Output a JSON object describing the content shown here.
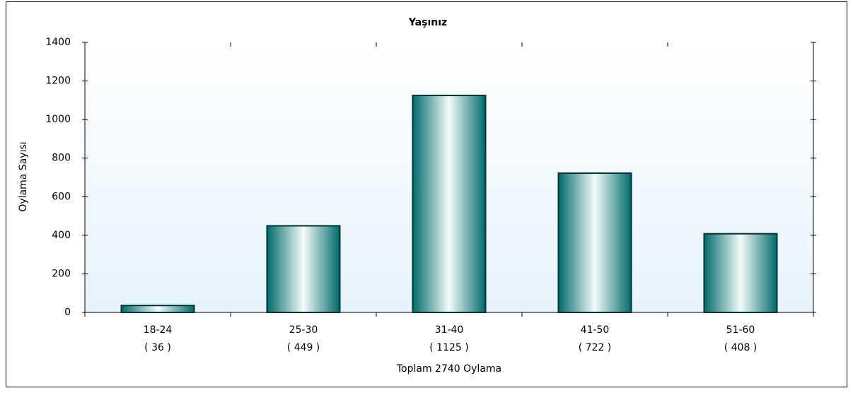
{
  "chart_data": {
    "type": "bar",
    "title": "Yaşınız",
    "categories": [
      "18-24",
      "25-30",
      "31-40",
      "41-50",
      "51-60"
    ],
    "values": [
      36,
      449,
      1125,
      722,
      408
    ],
    "value_labels": [
      "( 36 )",
      "( 449 )",
      "( 1125 )",
      "( 722 )",
      "( 408 )"
    ],
    "color": "#0f8282",
    "ylabel": "Oylama Sayısı",
    "xlabel": "Toplam 2740 Oylama",
    "ylim": [
      0,
      1400
    ],
    "yticks": [
      0,
      200,
      400,
      600,
      800,
      1000,
      1200,
      1400
    ]
  }
}
